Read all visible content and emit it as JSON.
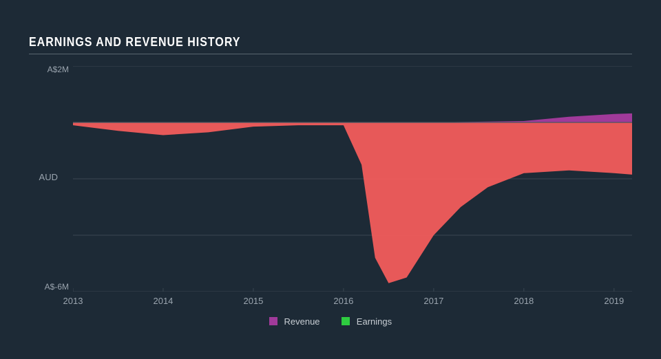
{
  "title": "EARNINGS AND REVENUE HISTORY",
  "background_color": "#1d2a36",
  "title_color": "#ffffff",
  "axis_text_color": "#9aa4ae",
  "grid_color": "#3a4752",
  "baseline_color": "#4a5661",
  "chart": {
    "type": "area",
    "xlim": [
      2013,
      2019.2
    ],
    "ylim": [
      -6,
      2
    ],
    "ytick_labels_shown": [
      "A$2M",
      "A$-6M"
    ],
    "ytick_positions_shown": [
      2,
      -6
    ],
    "y_axis_label": "AUD",
    "gridline_y_values": [
      2,
      0,
      -2,
      -4,
      -6
    ],
    "xticks": [
      2013,
      2014,
      2015,
      2016,
      2017,
      2018,
      2019
    ],
    "xtick_labels": [
      "2013",
      "2014",
      "2015",
      "2016",
      "2017",
      "2018",
      "2019"
    ],
    "series": {
      "revenue": {
        "label": "Revenue",
        "color": "#a03a9a",
        "fill_opacity": 1.0,
        "x": [
          2013,
          2014,
          2015,
          2016,
          2017,
          2018,
          2018.5,
          2019,
          2019.2
        ],
        "y": [
          0.0,
          0.0,
          0.0,
          0.0,
          0.0,
          0.05,
          0.2,
          0.3,
          0.32
        ]
      },
      "earnings": {
        "label": "Earnings",
        "color": "#2ecc40",
        "fill_opacity": 1.0,
        "x": [
          2013,
          2019.2
        ],
        "y": [
          0.0,
          0.0
        ]
      },
      "loss_area": {
        "comment": "negative earnings region rendered as red fill below baseline",
        "color": "#f25c5c",
        "fill_opacity": 0.95,
        "x": [
          2013,
          2013.5,
          2014,
          2014.5,
          2015,
          2015.5,
          2016,
          2016.2,
          2016.35,
          2016.5,
          2016.7,
          2017,
          2017.3,
          2017.6,
          2018,
          2018.5,
          2019,
          2019.2
        ],
        "y": [
          -0.1,
          -0.3,
          -0.45,
          -0.35,
          -0.15,
          -0.1,
          -0.1,
          -1.5,
          -4.8,
          -5.7,
          -5.5,
          -4.0,
          -3.0,
          -2.3,
          -1.8,
          -1.7,
          -1.8,
          -1.85
        ]
      }
    }
  },
  "legend": {
    "items": [
      {
        "label": "Revenue",
        "color": "#a03a9a"
      },
      {
        "label": "Earnings",
        "color": "#2ecc40"
      }
    ]
  }
}
